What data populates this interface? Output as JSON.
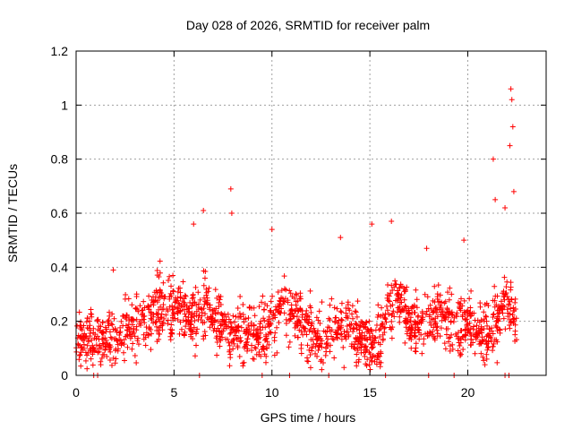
{
  "chart_data": {
    "type": "scatter",
    "title": "Day 028 of 2026, SRMTID for receiver palm",
    "xlabel": "GPS time / hours",
    "ylabel": "SRMTID / TECUs",
    "xlim": [
      0,
      24
    ],
    "ylim": [
      0,
      1.2
    ],
    "x_ticks": [
      0,
      5,
      10,
      15,
      20
    ],
    "x_tick_labels": [
      "0",
      "5",
      "10",
      "15",
      "20"
    ],
    "y_ticks": [
      0,
      0.2,
      0.4,
      0.6,
      0.8,
      1.0,
      1.2
    ],
    "y_tick_labels": [
      "0",
      "0.2",
      "0.4",
      "0.6",
      "0.8",
      "1",
      "1.2"
    ],
    "grid": true,
    "marker": "+",
    "series": [
      {
        "name": "SRMTID",
        "color": "#ff0000",
        "profile_hours": [
          0.0,
          0.5,
          1.0,
          1.5,
          2.0,
          2.5,
          3.0,
          3.5,
          4.0,
          4.5,
          5.0,
          5.5,
          6.0,
          6.5,
          7.0,
          7.5,
          8.0,
          8.5,
          9.0,
          9.5,
          10.0,
          10.5,
          11.0,
          11.5,
          12.0,
          12.5,
          13.0,
          13.5,
          14.0,
          14.5,
          15.0,
          15.5,
          16.0,
          16.5,
          17.0,
          17.5,
          18.0,
          18.5,
          19.0,
          19.5,
          20.0,
          20.5,
          21.0,
          21.5,
          22.0,
          22.5
        ],
        "profile_values": [
          0.12,
          0.14,
          0.13,
          0.12,
          0.13,
          0.18,
          0.19,
          0.2,
          0.24,
          0.27,
          0.26,
          0.24,
          0.22,
          0.24,
          0.21,
          0.19,
          0.17,
          0.15,
          0.15,
          0.14,
          0.2,
          0.26,
          0.25,
          0.2,
          0.17,
          0.1,
          0.16,
          0.2,
          0.18,
          0.15,
          0.12,
          0.12,
          0.25,
          0.28,
          0.2,
          0.18,
          0.2,
          0.24,
          0.18,
          0.2,
          0.19,
          0.16,
          0.15,
          0.2,
          0.3,
          0.2
        ],
        "highlight_points": [
          {
            "x": 1.9,
            "y": 0.39
          },
          {
            "x": 6.0,
            "y": 0.56
          },
          {
            "x": 6.5,
            "y": 0.61
          },
          {
            "x": 7.9,
            "y": 0.69
          },
          {
            "x": 7.95,
            "y": 0.6
          },
          {
            "x": 10.0,
            "y": 0.54
          },
          {
            "x": 13.5,
            "y": 0.51
          },
          {
            "x": 15.1,
            "y": 0.56
          },
          {
            "x": 16.1,
            "y": 0.57
          },
          {
            "x": 17.9,
            "y": 0.47
          },
          {
            "x": 19.8,
            "y": 0.5
          },
          {
            "x": 21.3,
            "y": 0.8
          },
          {
            "x": 21.4,
            "y": 0.65
          },
          {
            "x": 21.9,
            "y": 0.62
          },
          {
            "x": 22.2,
            "y": 1.06
          },
          {
            "x": 22.25,
            "y": 1.02
          },
          {
            "x": 22.3,
            "y": 0.92
          },
          {
            "x": 22.15,
            "y": 0.85
          },
          {
            "x": 22.35,
            "y": 0.68
          }
        ],
        "zero_points_x": [
          0.9,
          1.1,
          6.3,
          9.5,
          10.9,
          12.9,
          15.8,
          18.0,
          19.3,
          21.9,
          22.1
        ]
      }
    ]
  }
}
